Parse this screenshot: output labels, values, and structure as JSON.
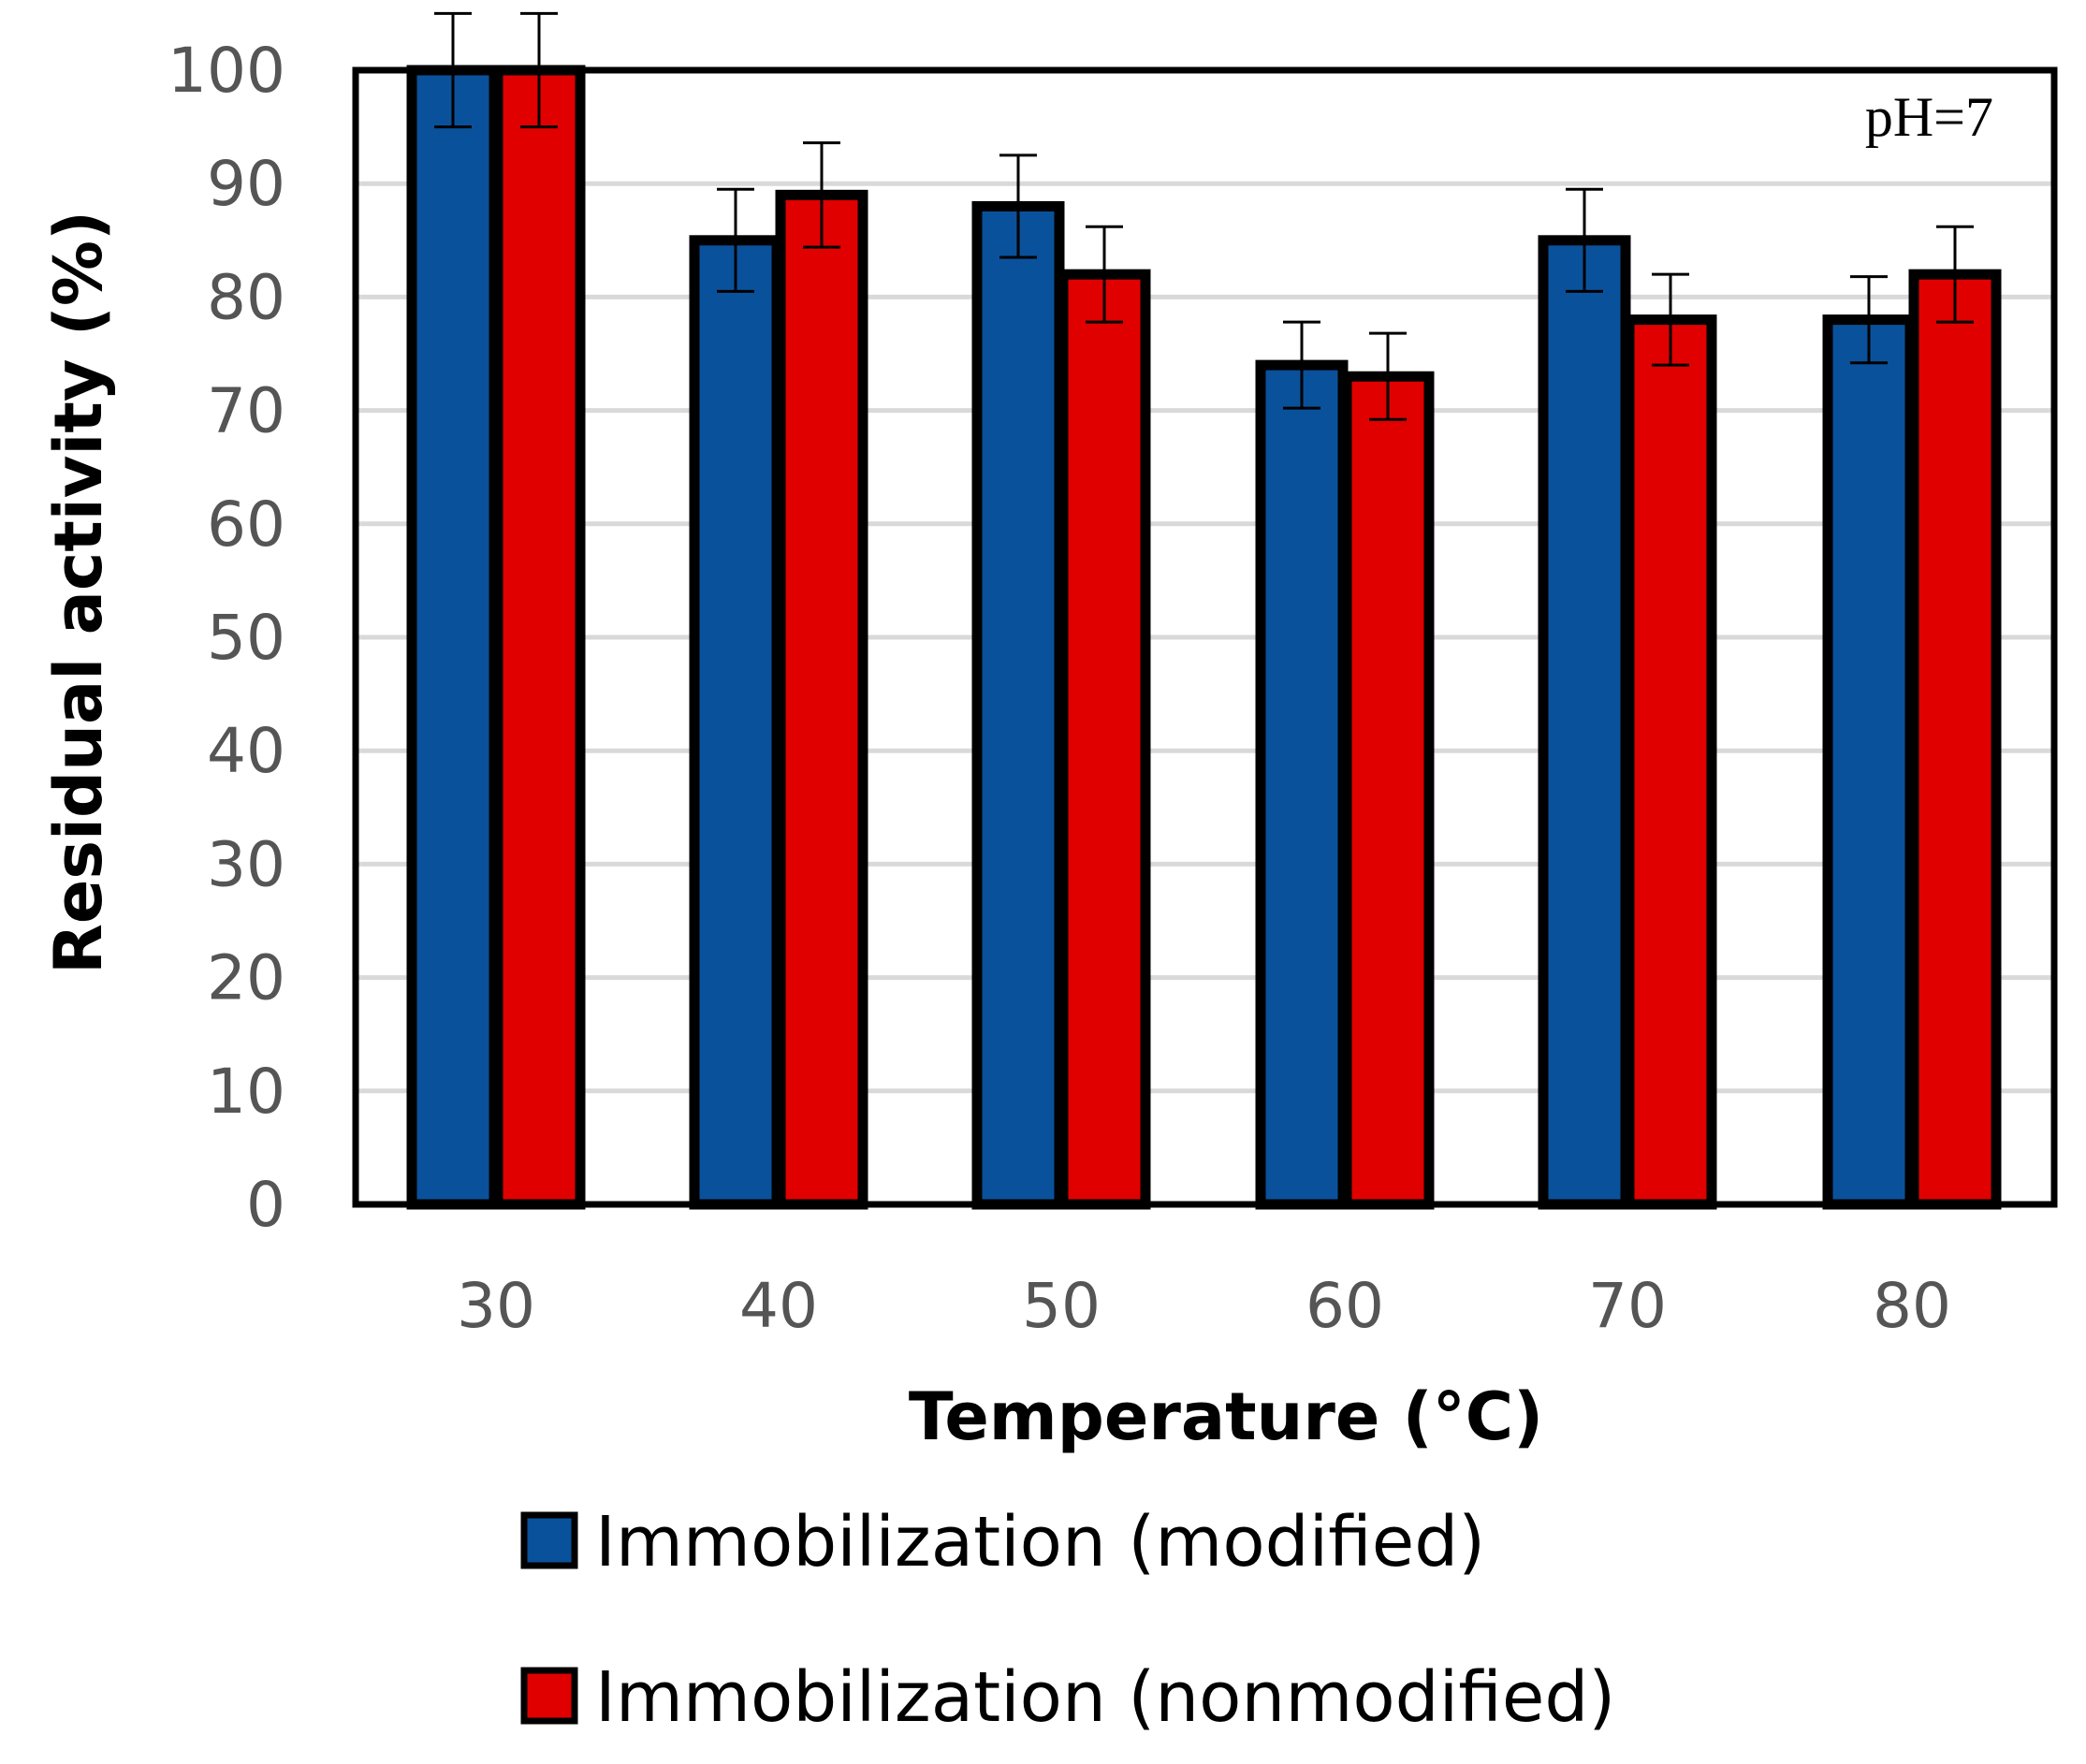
{
  "chart_data": {
    "type": "bar",
    "title": "",
    "xlabel": "Temperature (°C)",
    "ylabel": "Residual activity (%)",
    "categories": [
      "30",
      "40",
      "50",
      "60",
      "70",
      "80"
    ],
    "ylim": [
      0,
      100
    ],
    "yticks": [
      "0",
      "10",
      "20",
      "30",
      "40",
      "50",
      "60",
      "70",
      "80",
      "90",
      "100"
    ],
    "grid": true,
    "annotation": "pH=7",
    "legend_position": "bottom",
    "series": [
      {
        "name": "Immobilization (modified)",
        "color": "#0a519b",
        "values": [
          100,
          85,
          88,
          74,
          85,
          78
        ],
        "errors": [
          5,
          4.5,
          4.5,
          3.8,
          4.5,
          3.8
        ]
      },
      {
        "name": "Immobilization (nonmodified)",
        "color": "#e00000",
        "values": [
          100,
          89,
          82,
          73,
          78,
          82
        ],
        "errors": [
          5,
          4.6,
          4.2,
          3.8,
          4,
          4.2
        ]
      }
    ]
  }
}
